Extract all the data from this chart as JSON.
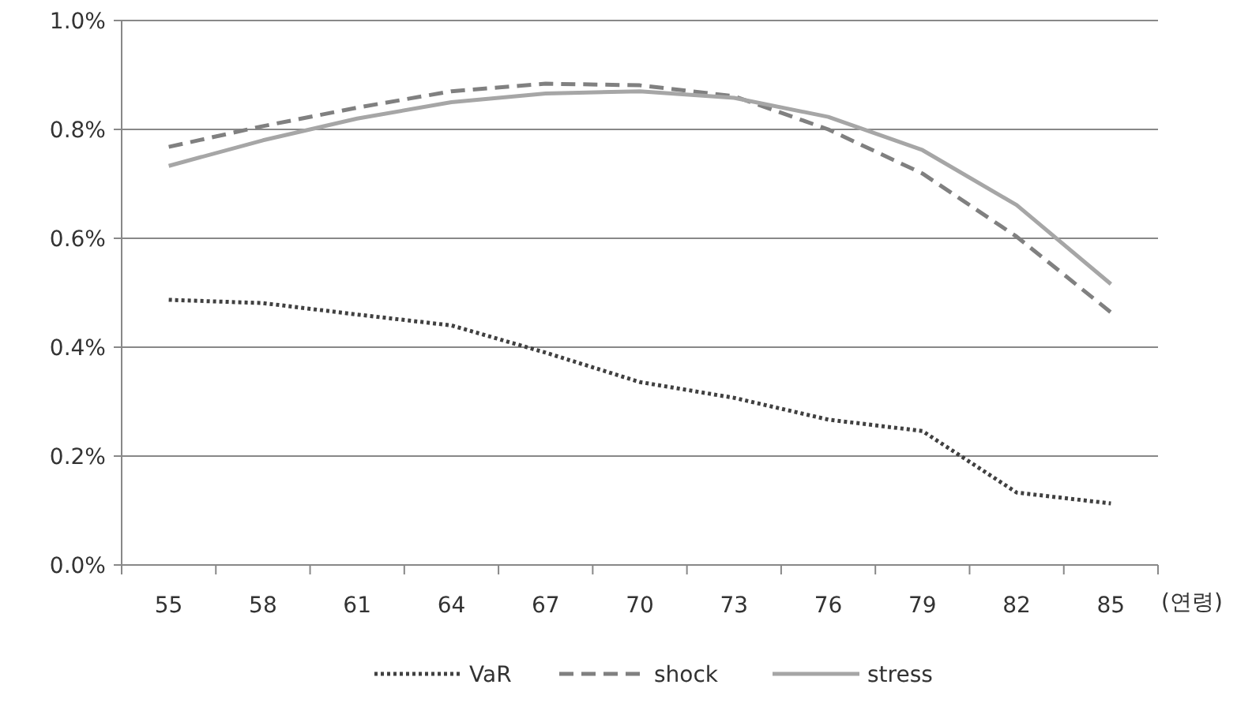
{
  "chart_data": {
    "type": "line",
    "xlabel": "(연령)",
    "categories": [
      "55",
      "58",
      "61",
      "64",
      "67",
      "70",
      "73",
      "76",
      "79",
      "82",
      "85"
    ],
    "series": [
      {
        "name": "VaR",
        "color": "#404040",
        "line_style": "dotted",
        "values": [
          0.487,
          0.481,
          0.46,
          0.44,
          0.39,
          0.336,
          0.307,
          0.267,
          0.246,
          0.133,
          0.113
        ]
      },
      {
        "name": "shock",
        "color": "#808080",
        "line_style": "dashed",
        "values": [
          0.768,
          0.806,
          0.84,
          0.87,
          0.884,
          0.881,
          0.861,
          0.8,
          0.719,
          0.603,
          0.464
        ]
      },
      {
        "name": "stress",
        "color": "#a6a6a6",
        "line_style": "solid",
        "values": [
          0.733,
          0.78,
          0.82,
          0.85,
          0.866,
          0.87,
          0.858,
          0.823,
          0.762,
          0.661,
          0.516
        ]
      }
    ],
    "ylim": [
      0,
      1
    ],
    "yticks": [
      {
        "value": 0,
        "label": "0.0%"
      },
      {
        "value": 0.2,
        "label": "0.2%"
      },
      {
        "value": 0.4,
        "label": "0.4%"
      },
      {
        "value": 0.6,
        "label": "0.6%"
      },
      {
        "value": 0.8,
        "label": "0.8%"
      },
      {
        "value": 1,
        "label": "1.0%"
      }
    ],
    "grid": "y",
    "legend": "bottom",
    "marker": "none"
  }
}
